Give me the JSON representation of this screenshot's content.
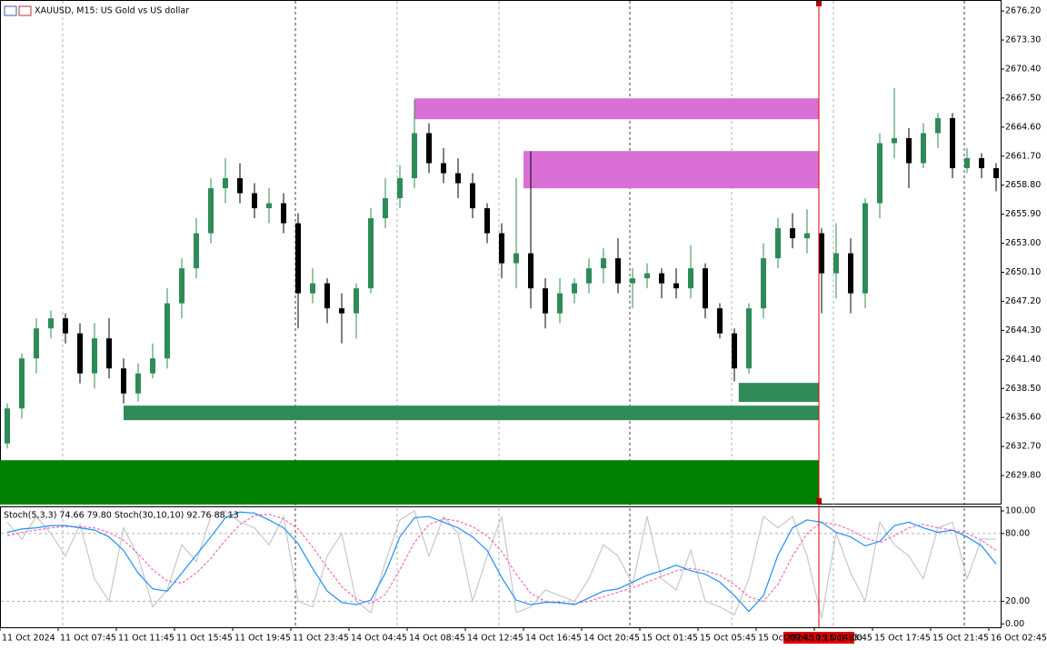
{
  "chart_data": [
    {
      "type": "candlestick",
      "title": "XAUUSD, M15:  US Gold vs US dollar",
      "categories": [
        "11 Oct 2024",
        null,
        null,
        null,
        "11 Oct 07:45",
        null,
        null,
        null,
        "11 Oct 11:45",
        null,
        null,
        null,
        "11 Oct 15:45",
        null,
        null,
        null,
        "11 Oct 19:45",
        null,
        null,
        null,
        "11 Oct 23:45",
        null,
        null,
        null,
        "14 Oct 04:45",
        null,
        null,
        null,
        "14 Oct 08:45",
        null,
        null,
        null,
        "14 Oct 12:45",
        null,
        null,
        null,
        "14 Oct 16:45",
        null,
        null,
        null,
        "14 Oct 20:45",
        null,
        null,
        null,
        "15 Oct 01:45",
        null,
        null,
        null,
        "15 Oct 05:45",
        null,
        null,
        null,
        "15 Oct 09:45",
        null,
        null,
        null,
        "15 Oct 13:45",
        null,
        null,
        null,
        "15 Oct 17:45",
        null,
        null,
        null,
        "15 Oct 21:45",
        null,
        null,
        null,
        "16 Oct 02:45"
      ],
      "open": [
        2633,
        2636.5,
        2641.5,
        2644.5,
        2645.5,
        2644,
        2640,
        2643.5,
        2640.5,
        2638,
        2640,
        2641.5,
        2647,
        2650.5,
        2654,
        2658.5,
        2659.5,
        2658,
        2656.5,
        2657,
        2655,
        2648,
        2649,
        2646.5,
        2646,
        2648.5,
        2655.5,
        2657.5,
        2659.5,
        2664,
        2661,
        2660,
        2659,
        2656.5,
        2654,
        2651,
        2652,
        2648.5,
        2646,
        2648,
        2649,
        2650.5,
        2651.5,
        2649,
        2649.5,
        2650,
        2649,
        2648.5,
        2650.5,
        2646.5,
        2644,
        2640.5,
        2646.5,
        2651.5,
        2654.5,
        2653.5,
        2654,
        2650,
        2652,
        2648,
        2657,
        2663,
        2663.5,
        2661,
        2664,
        2665.5,
        2660.5,
        2661.5,
        2660.5
      ],
      "high": [
        2637,
        2642,
        2645.5,
        2646.3,
        2646,
        2645,
        2645,
        2645.5,
        2641.5,
        2641,
        2643,
        2648.5,
        2651.5,
        2655.5,
        2659.5,
        2661.5,
        2661,
        2659,
        2658.5,
        2658,
        2656,
        2650.5,
        2649.5,
        2648,
        2649,
        2656.5,
        2659.5,
        2660.8,
        2667.3,
        2665,
        2662.5,
        2661.5,
        2660,
        2657,
        2655,
        2659.5,
        2662.2,
        2649.5,
        2649.5,
        2649.5,
        2651.5,
        2652.5,
        2653.5,
        2650.5,
        2651,
        2650.5,
        2650.5,
        2652.8,
        2651,
        2647,
        2644.5,
        2647,
        2653,
        2655.5,
        2656,
        2656.4,
        2654.5,
        2655,
        2653.5,
        2657.5,
        2664,
        2668.5,
        2664.5,
        2665,
        2666,
        2666,
        2662.5,
        2662,
        2661
      ],
      "low": [
        2632.5,
        2635.5,
        2640,
        2643.5,
        2643,
        2639,
        2638.5,
        2639.5,
        2637,
        2637.2,
        2639.5,
        2640.5,
        2645.5,
        2649.5,
        2653,
        2657,
        2657,
        2655.5,
        2655,
        2654,
        2644.5,
        2647,
        2645,
        2643,
        2643.5,
        2648,
        2654.5,
        2656.5,
        2658.5,
        2660,
        2659,
        2657.5,
        2655.5,
        2653,
        2649.5,
        2648.5,
        2646.5,
        2644.5,
        2645,
        2647,
        2648,
        2649,
        2648,
        2646.5,
        2648.5,
        2647.5,
        2647.5,
        2647.5,
        2645.5,
        2643.5,
        2639.2,
        2640,
        2645.5,
        2650.5,
        2652.5,
        2652,
        2646,
        2647.5,
        2646,
        2646.5,
        2655.5,
        2661.5,
        2658.5,
        2660.5,
        2662.5,
        2659.5,
        2660,
        2659.5,
        2658.2
      ],
      "close": [
        2636.5,
        2641.5,
        2644.5,
        2645.5,
        2644,
        2640,
        2643.5,
        2640.5,
        2638,
        2640,
        2641.5,
        2647,
        2650.5,
        2654,
        2658.5,
        2659.5,
        2658,
        2656.5,
        2657,
        2655,
        2648,
        2649,
        2646.5,
        2646,
        2648.5,
        2655.5,
        2657.5,
        2659.5,
        2664,
        2661,
        2660,
        2659,
        2656.5,
        2654,
        2651,
        2652,
        2648.5,
        2646,
        2648,
        2649,
        2650.5,
        2651.5,
        2649,
        2649.5,
        2650,
        2649,
        2648.5,
        2650.5,
        2646.5,
        2644,
        2640.5,
        2646.5,
        2651.5,
        2654.5,
        2653.5,
        2654,
        2650,
        2652,
        2648,
        2657,
        2663,
        2663.5,
        2661,
        2664,
        2665.5,
        2660.5,
        2661.5,
        2660.5,
        2659.5
      ],
      "bull_color": "#2e8b57",
      "bear_color": "#000000",
      "ylim": [
        2626.9,
        2677.3
      ],
      "yticks": [
        {
          "value": 2676.2,
          "label": "2676.20"
        },
        {
          "value": 2673.3,
          "label": "2673.30"
        },
        {
          "value": 2670.4,
          "label": "2670.40"
        },
        {
          "value": 2667.5,
          "label": "2667.50"
        },
        {
          "value": 2664.6,
          "label": "2664.60"
        },
        {
          "value": 2661.7,
          "label": "2661.70"
        },
        {
          "value": 2658.8,
          "label": "2658.80"
        },
        {
          "value": 2655.9,
          "label": "2655.90"
        },
        {
          "value": 2653,
          "label": "2653.00"
        },
        {
          "value": 2650.1,
          "label": "2650.10"
        },
        {
          "value": 2647.2,
          "label": "2647.20"
        },
        {
          "value": 2644.3,
          "label": "2644.30"
        },
        {
          "value": 2641.4,
          "label": "2641.40"
        },
        {
          "value": 2638.5,
          "label": "2638.50"
        },
        {
          "value": 2635.6,
          "label": "2635.60"
        },
        {
          "value": 2632.7,
          "label": "2632.70"
        },
        {
          "value": 2629.8,
          "label": "2629.80"
        }
      ],
      "zones": [
        {
          "top": 2667.48,
          "bottom": 2665.39,
          "from": 28.5,
          "to": 56.3,
          "color": "#da70d6"
        },
        {
          "top": 2662.21,
          "bottom": 2658.49,
          "from": 36,
          "to": 56.3,
          "color": "#da70d6"
        },
        {
          "top": 2639.05,
          "bottom": 2637.15,
          "from": 50.8,
          "to": 56.3,
          "color": "#2e8b57"
        },
        {
          "top": 2636.78,
          "bottom": 2635.33,
          "from": 8.5,
          "to": 56.3,
          "color": "#2e8b57"
        },
        {
          "top": 2631.33,
          "bottom": 2626.9,
          "from": 0,
          "to": 56.3,
          "color": "#008000"
        }
      ],
      "cursor_label": "2024.10.15 14:00"
    },
    {
      "type": "line",
      "title": "Stoch(5,3,3) 74.66 79.80 Stoch(30,10,10) 92.76 88.13",
      "series": [
        {
          "color": "#c8c8c8",
          "dashed": false,
          "values": [
            90,
            75,
            95,
            80,
            60,
            88,
            40,
            20,
            85,
            60,
            15,
            30,
            70,
            55,
            95,
            100,
            90,
            85,
            70,
            95,
            20,
            15,
            60,
            80,
            20,
            10,
            55,
            92,
            100,
            60,
            95,
            80,
            20,
            60,
            95,
            10,
            15,
            30,
            25,
            20,
            40,
            70,
            60,
            35,
            95,
            40,
            30,
            65,
            20,
            15,
            8,
            40,
            95,
            85,
            95,
            60,
            5,
            80,
            45,
            20,
            90,
            70,
            60,
            40,
            85,
            90,
            40,
            75,
            75
          ]
        },
        {
          "color": "#ff69b4",
          "dashed": true,
          "values": [
            78,
            81,
            83,
            85,
            86,
            86,
            85,
            81,
            74,
            62,
            48,
            38,
            36,
            45,
            58,
            74,
            88,
            96,
            97,
            93,
            84,
            68,
            50,
            33,
            22,
            18,
            26,
            48,
            72,
            88,
            93,
            91,
            86,
            78,
            64,
            44,
            27,
            20,
            18,
            18,
            20,
            24,
            28,
            32,
            37,
            42,
            47,
            49,
            47,
            43,
            35,
            24,
            20,
            35,
            60,
            80,
            90,
            88,
            83,
            76,
            72,
            78,
            85,
            88,
            85,
            83,
            80,
            74,
            65
          ]
        },
        {
          "color": "#1e90ff",
          "dashed": false,
          "values": [
            81,
            84,
            85,
            87,
            87,
            85,
            83,
            77,
            65,
            45,
            31,
            29,
            45,
            61,
            77,
            94,
            99,
            98,
            92,
            85,
            71,
            49,
            29,
            19,
            17,
            21,
            45,
            77,
            94,
            95,
            90,
            85,
            77,
            65,
            41,
            21,
            17,
            19,
            19,
            17,
            23,
            29,
            31,
            37,
            43,
            47,
            52,
            47,
            44,
            37,
            25,
            11,
            25,
            61,
            85,
            92,
            90,
            81,
            77,
            69,
            73,
            87,
            90,
            85,
            81,
            83,
            77,
            69,
            53
          ]
        }
      ],
      "ylim": [
        -3,
        104
      ],
      "yticks": [
        {
          "value": 100,
          "label": "100.00"
        },
        {
          "value": 80,
          "label": "80.00"
        },
        {
          "value": 20,
          "label": "20.00"
        },
        {
          "value": 0,
          "label": "0.00"
        }
      ],
      "levels": [
        80,
        20
      ]
    }
  ]
}
